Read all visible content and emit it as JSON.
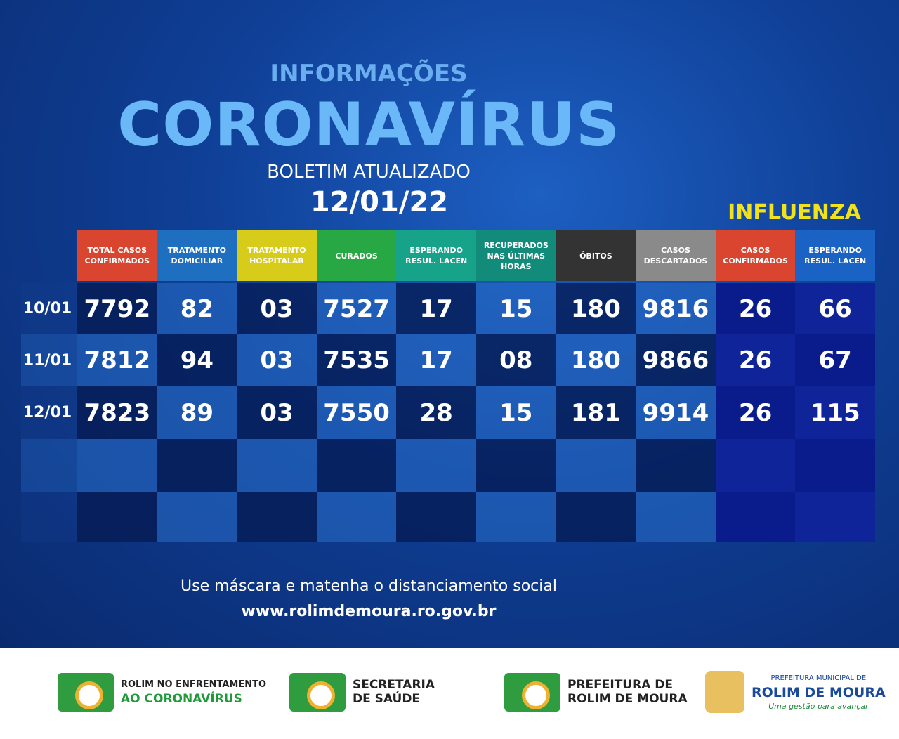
{
  "header": {
    "kicker": "INFORMAÇÕES",
    "title": "CORONAVÍRUS",
    "subtitle": "BOLETIM ATUALIZADO",
    "date": "12/01/22"
  },
  "table": {
    "group_label": "INFLUENZA",
    "columns": [
      "TOTAL CASOS CONFIRMADOS",
      "TRATAMENTO DOMICILIAR",
      "TRATAMENTO HOSPITALAR",
      "CURADOS",
      "ESPERANDO RESUL. LACEN",
      "RECUPERADOS NAS ÚLTIMAS HORAS",
      "ÓBITOS",
      "CASOS DESCARTADOS",
      "CASOS CONFIRMADOS",
      "ESPERANDO RESUL. LACEN"
    ],
    "rows": [
      {
        "date": "10/01",
        "cells": [
          "7792",
          "82",
          "03",
          "7527",
          "17",
          "15",
          "180",
          "9816",
          "26",
          "66"
        ]
      },
      {
        "date": "11/01",
        "cells": [
          "7812",
          "94",
          "03",
          "7535",
          "17",
          "08",
          "180",
          "9866",
          "26",
          "67"
        ]
      },
      {
        "date": "12/01",
        "cells": [
          "7823",
          "89",
          "03",
          "7550",
          "28",
          "15",
          "181",
          "9914",
          "26",
          "115"
        ]
      }
    ]
  },
  "footer": {
    "message": "Use máscara e matenha o distanciamento social",
    "url": "www.rolimdemoura.ro.gov.br"
  },
  "logos": [
    {
      "line1": "ROLIM NO ENFRENTAMENTO",
      "line2": "AO CORONAVÍRUS"
    },
    {
      "line1": "SECRETARIA",
      "line2": "DE SAÚDE"
    },
    {
      "line1": "PREFEITURA DE",
      "line2": "ROLIM DE MOURA"
    },
    {
      "line1": "PREFEITURA MUNICIPAL DE",
      "line2": "ROLIM DE MOURA",
      "tagline": "Uma gestão para avançar"
    }
  ]
}
